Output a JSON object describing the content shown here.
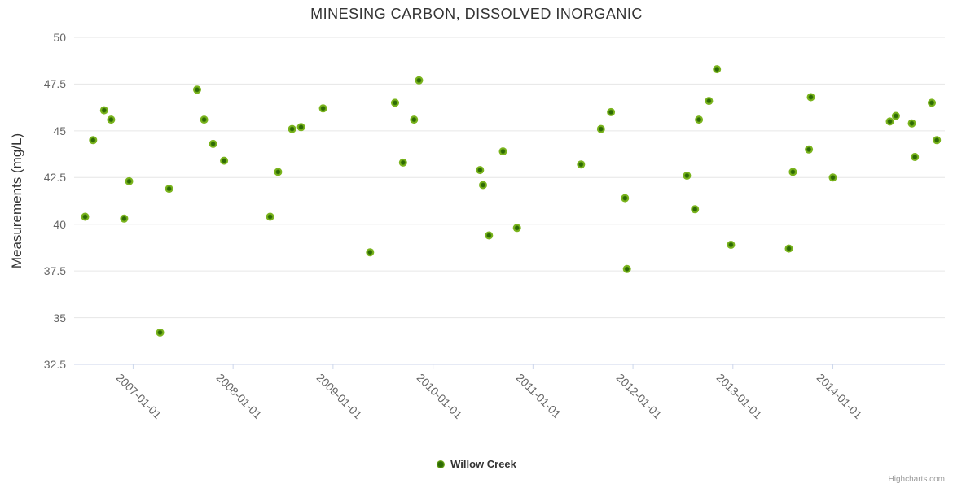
{
  "credits": "Highcharts.com",
  "chart_data": {
    "type": "scatter",
    "title": "MINESING CARBON, DISSOLVED INORGANIC",
    "xlabel": "",
    "ylabel": "Measurements (mg/L)",
    "ylim": [
      32.5,
      50
    ],
    "xlim_decimal_years": [
      2006.41,
      2015.12
    ],
    "grid": true,
    "legend_position": "bottom-center",
    "y_ticks": [
      "32.5",
      "35",
      "37.5",
      "40",
      "42.5",
      "45",
      "47.5",
      "50"
    ],
    "x_ticks": [
      {
        "year": 2007,
        "label": "2007-01-01"
      },
      {
        "year": 2008,
        "label": "2008-01-01"
      },
      {
        "year": 2009,
        "label": "2009-01-01"
      },
      {
        "year": 2010,
        "label": "2010-01-01"
      },
      {
        "year": 2011,
        "label": "2011-01-01"
      },
      {
        "year": 2012,
        "label": "2012-01-01"
      },
      {
        "year": 2013,
        "label": "2013-01-01"
      },
      {
        "year": 2014,
        "label": "2014-01-01"
      }
    ],
    "series": [
      {
        "name": "Willow Creek",
        "marker_color_outer": "#7ab41d",
        "marker_color_inner": "#2d6a04",
        "points": [
          {
            "x": 2006.52,
            "y": 40.4
          },
          {
            "x": 2006.6,
            "y": 44.5
          },
          {
            "x": 2006.71,
            "y": 46.1
          },
          {
            "x": 2006.78,
            "y": 45.6
          },
          {
            "x": 2006.91,
            "y": 40.3
          },
          {
            "x": 2006.96,
            "y": 42.3
          },
          {
            "x": 2007.27,
            "y": 34.2
          },
          {
            "x": 2007.36,
            "y": 41.9
          },
          {
            "x": 2007.64,
            "y": 47.2
          },
          {
            "x": 2007.71,
            "y": 45.6
          },
          {
            "x": 2007.8,
            "y": 44.3
          },
          {
            "x": 2007.91,
            "y": 43.4
          },
          {
            "x": 2008.37,
            "y": 40.4
          },
          {
            "x": 2008.45,
            "y": 42.8
          },
          {
            "x": 2008.59,
            "y": 45.1
          },
          {
            "x": 2008.68,
            "y": 45.2
          },
          {
            "x": 2008.9,
            "y": 46.2
          },
          {
            "x": 2009.37,
            "y": 38.5
          },
          {
            "x": 2009.62,
            "y": 46.5
          },
          {
            "x": 2009.7,
            "y": 43.3
          },
          {
            "x": 2009.81,
            "y": 45.6
          },
          {
            "x": 2009.86,
            "y": 47.7
          },
          {
            "x": 2010.47,
            "y": 42.9
          },
          {
            "x": 2010.5,
            "y": 42.1
          },
          {
            "x": 2010.56,
            "y": 39.4
          },
          {
            "x": 2010.7,
            "y": 43.9
          },
          {
            "x": 2010.84,
            "y": 39.8
          },
          {
            "x": 2011.48,
            "y": 43.2
          },
          {
            "x": 2011.68,
            "y": 45.1
          },
          {
            "x": 2011.78,
            "y": 46.0
          },
          {
            "x": 2011.92,
            "y": 41.4
          },
          {
            "x": 2011.94,
            "y": 37.6
          },
          {
            "x": 2012.54,
            "y": 42.6
          },
          {
            "x": 2012.62,
            "y": 40.8
          },
          {
            "x": 2012.66,
            "y": 45.6
          },
          {
            "x": 2012.76,
            "y": 46.6
          },
          {
            "x": 2012.84,
            "y": 48.3
          },
          {
            "x": 2012.98,
            "y": 38.9
          },
          {
            "x": 2013.56,
            "y": 38.7
          },
          {
            "x": 2013.6,
            "y": 42.8
          },
          {
            "x": 2013.76,
            "y": 44.0
          },
          {
            "x": 2013.78,
            "y": 46.8
          },
          {
            "x": 2014.0,
            "y": 42.5
          },
          {
            "x": 2014.57,
            "y": 45.5
          },
          {
            "x": 2014.63,
            "y": 45.8
          },
          {
            "x": 2014.79,
            "y": 45.4
          },
          {
            "x": 2014.82,
            "y": 43.6
          },
          {
            "x": 2014.99,
            "y": 46.5
          },
          {
            "x": 2015.04,
            "y": 44.5
          }
        ]
      }
    ],
    "colors": {
      "gridline": "#e6e6e6",
      "axis_line": "#ccd6eb",
      "title_text": "#333333",
      "axis_label_text": "#666666"
    }
  }
}
